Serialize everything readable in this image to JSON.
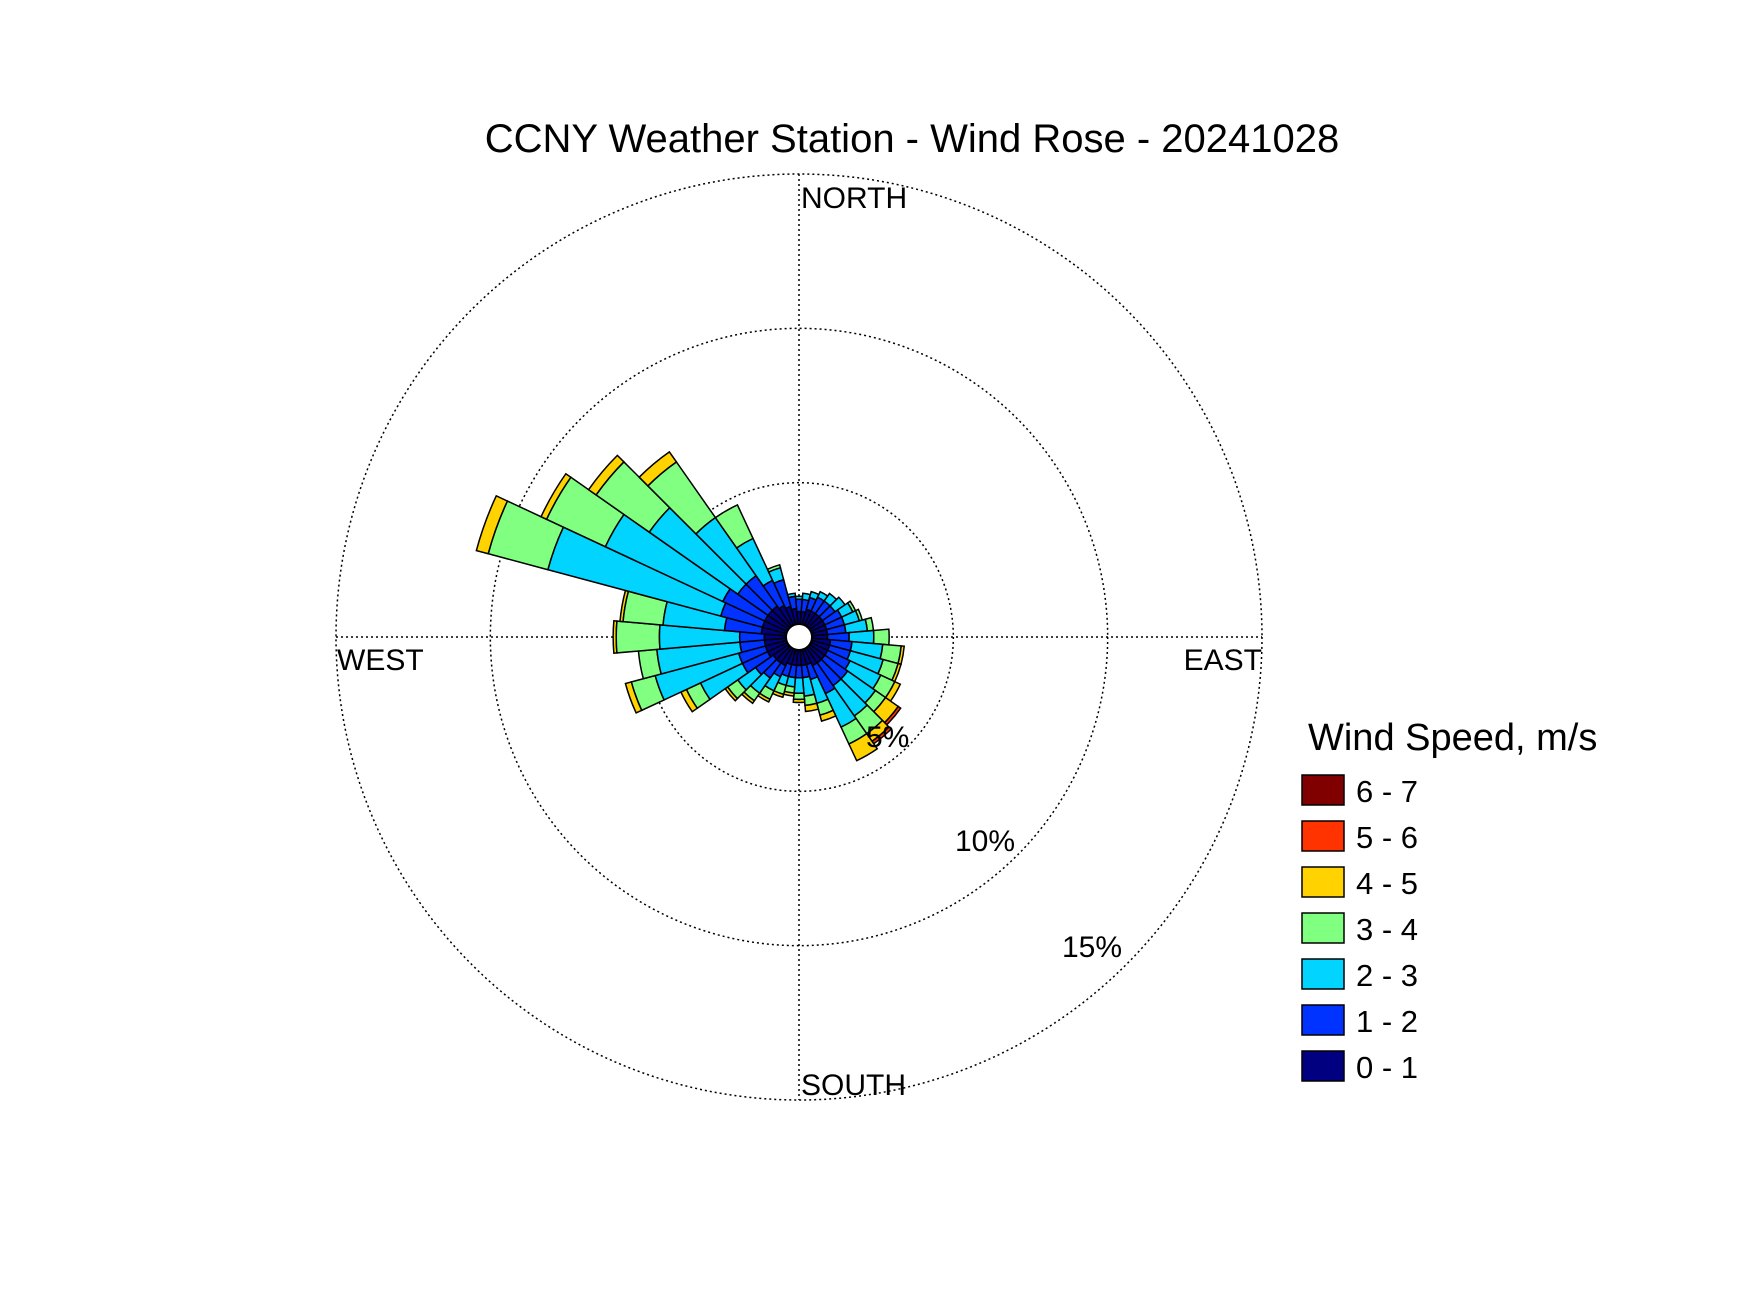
{
  "chart_data": {
    "type": "windrose",
    "title": "CCNY Weather Station - Wind Rose - 20241028",
    "directions": {
      "north": "NORTH",
      "south": "SOUTH",
      "east": "EAST",
      "west": "WEST"
    },
    "radial_axis": {
      "unit": "%",
      "max": 15,
      "ticks": [
        5,
        10,
        15
      ],
      "tick_labels": [
        "5%",
        "10%",
        "15%"
      ]
    },
    "grid": true,
    "legend": {
      "title": "Wind Speed, m/s",
      "placement": "right",
      "items": [
        {
          "label": "6 - 7",
          "color": "#800000"
        },
        {
          "label": "5 - 6",
          "color": "#ff3300"
        },
        {
          "label": "4 - 5",
          "color": "#ffd200"
        },
        {
          "label": "3 - 4",
          "color": "#80ff80"
        },
        {
          "label": "2 - 3",
          "color": "#00d4ff"
        },
        {
          "label": "1 - 2",
          "color": "#0033ff"
        },
        {
          "label": "0 - 1",
          "color": "#000080"
        }
      ]
    },
    "speed_bins": [
      "0 - 1",
      "1 - 2",
      "2 - 3",
      "3 - 4",
      "4 - 5",
      "5 - 6",
      "6 - 7"
    ],
    "sector_width_deg": 10,
    "sectors": [
      {
        "direction_deg": 0,
        "cumulative_percent": [
          0.4,
          0.8,
          0.9,
          0.9,
          0.9,
          0.9,
          0.9
        ]
      },
      {
        "direction_deg": 10,
        "cumulative_percent": [
          0.4,
          0.8,
          1.0,
          1.0,
          1.0,
          1.0,
          1.0
        ]
      },
      {
        "direction_deg": 20,
        "cumulative_percent": [
          0.5,
          0.9,
          1.1,
          1.1,
          1.1,
          1.1,
          1.1
        ]
      },
      {
        "direction_deg": 30,
        "cumulative_percent": [
          0.5,
          1.0,
          1.2,
          1.2,
          1.2,
          1.2,
          1.2
        ]
      },
      {
        "direction_deg": 40,
        "cumulative_percent": [
          0.5,
          1.0,
          1.3,
          1.3,
          1.3,
          1.3,
          1.3
        ]
      },
      {
        "direction_deg": 50,
        "cumulative_percent": [
          0.5,
          1.0,
          1.4,
          1.4,
          1.4,
          1.4,
          1.4
        ]
      },
      {
        "direction_deg": 60,
        "cumulative_percent": [
          0.5,
          1.1,
          1.5,
          1.6,
          1.6,
          1.6,
          1.6
        ]
      },
      {
        "direction_deg": 70,
        "cumulative_percent": [
          0.5,
          1.1,
          1.6,
          1.7,
          1.7,
          1.7,
          1.7
        ]
      },
      {
        "direction_deg": 80,
        "cumulative_percent": [
          0.5,
          1.1,
          1.8,
          2.0,
          2.0,
          2.0,
          2.0
        ]
      },
      {
        "direction_deg": 90,
        "cumulative_percent": [
          0.5,
          1.2,
          2.0,
          2.5,
          2.5,
          2.5,
          2.5
        ]
      },
      {
        "direction_deg": 100,
        "cumulative_percent": [
          0.6,
          1.3,
          2.3,
          2.9,
          3.0,
          3.0,
          3.0
        ]
      },
      {
        "direction_deg": 110,
        "cumulative_percent": [
          0.6,
          1.3,
          2.4,
          2.9,
          3.0,
          3.0,
          3.0
        ]
      },
      {
        "direction_deg": 120,
        "cumulative_percent": [
          0.6,
          1.4,
          2.5,
          3.0,
          3.2,
          3.2,
          3.2
        ]
      },
      {
        "direction_deg": 130,
        "cumulative_percent": [
          0.6,
          1.5,
          2.6,
          3.0,
          3.5,
          3.6,
          3.6
        ]
      },
      {
        "direction_deg": 140,
        "cumulative_percent": [
          0.6,
          1.5,
          2.7,
          3.4,
          3.7,
          3.8,
          3.8
        ]
      },
      {
        "direction_deg": 150,
        "cumulative_percent": [
          0.6,
          1.6,
          2.8,
          3.4,
          4.0,
          4.0,
          4.0
        ]
      },
      {
        "direction_deg": 160,
        "cumulative_percent": [
          0.5,
          1.0,
          1.8,
          2.2,
          2.4,
          2.4,
          2.4
        ]
      },
      {
        "direction_deg": 170,
        "cumulative_percent": [
          0.5,
          0.9,
          1.5,
          1.8,
          2.0,
          2.0,
          2.0
        ]
      },
      {
        "direction_deg": 180,
        "cumulative_percent": [
          0.5,
          0.9,
          1.4,
          1.6,
          1.7,
          1.7,
          1.7
        ]
      },
      {
        "direction_deg": 190,
        "cumulative_percent": [
          0.5,
          0.9,
          1.2,
          1.4,
          1.5,
          1.5,
          1.5
        ]
      },
      {
        "direction_deg": 200,
        "cumulative_percent": [
          0.5,
          0.9,
          1.2,
          1.5,
          1.6,
          1.6,
          1.6
        ]
      },
      {
        "direction_deg": 210,
        "cumulative_percent": [
          0.6,
          1.0,
          1.5,
          1.8,
          1.9,
          1.9,
          1.9
        ]
      },
      {
        "direction_deg": 220,
        "cumulative_percent": [
          0.6,
          1.2,
          1.8,
          2.1,
          2.2,
          2.2,
          2.2
        ]
      },
      {
        "direction_deg": 230,
        "cumulative_percent": [
          0.6,
          1.3,
          2.0,
          2.4,
          2.5,
          2.5,
          2.5
        ]
      },
      {
        "direction_deg": 240,
        "cumulative_percent": [
          0.7,
          1.6,
          3.1,
          3.6,
          3.8,
          3.8,
          3.8
        ]
      },
      {
        "direction_deg": 250,
        "cumulative_percent": [
          0.7,
          1.6,
          4.4,
          5.2,
          5.4,
          5.4,
          5.4
        ]
      },
      {
        "direction_deg": 260,
        "cumulative_percent": [
          0.7,
          1.5,
          4.2,
          4.8,
          4.8,
          4.8,
          4.8
        ]
      },
      {
        "direction_deg": 270,
        "cumulative_percent": [
          0.7,
          1.5,
          4.1,
          5.5,
          5.6,
          5.6,
          5.6
        ]
      },
      {
        "direction_deg": 280,
        "cumulative_percent": [
          0.8,
          2.0,
          4.0,
          5.3,
          5.4,
          5.4,
          5.4
        ]
      },
      {
        "direction_deg": 290,
        "cumulative_percent": [
          0.8,
          2.2,
          8.0,
          10.0,
          10.4,
          10.4,
          10.4
        ]
      },
      {
        "direction_deg": 300,
        "cumulative_percent": [
          0.8,
          2.3,
          6.5,
          8.6,
          8.8,
          8.8,
          8.8
        ]
      },
      {
        "direction_deg": 310,
        "cumulative_percent": [
          0.8,
          2.0,
          5.5,
          7.6,
          7.9,
          7.9,
          7.9
        ]
      },
      {
        "direction_deg": 320,
        "cumulative_percent": [
          0.8,
          2.0,
          4.3,
          6.5,
          6.9,
          6.9,
          6.9
        ]
      },
      {
        "direction_deg": 330,
        "cumulative_percent": [
          0.7,
          1.6,
          3.1,
          4.3,
          4.3,
          4.3,
          4.3
        ]
      },
      {
        "direction_deg": 340,
        "cumulative_percent": [
          0.6,
          1.5,
          1.9,
          2.0,
          2.0,
          2.0,
          2.0
        ]
      },
      {
        "direction_deg": 350,
        "cumulative_percent": [
          0.5,
          0.9,
          1.0,
          1.0,
          1.0,
          1.0,
          1.0
        ]
      }
    ]
  }
}
